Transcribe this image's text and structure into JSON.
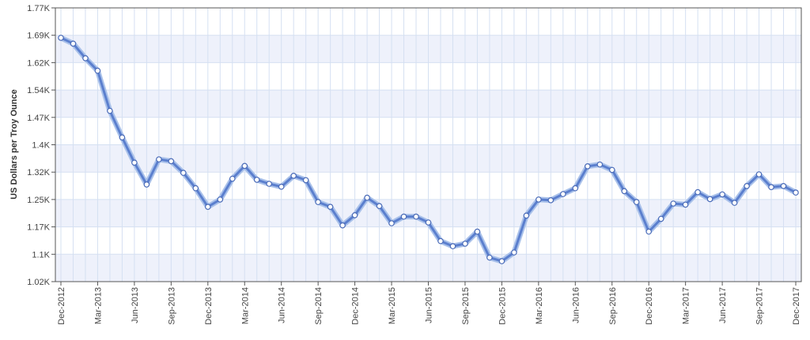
{
  "chart_data": {
    "type": "line",
    "title": "",
    "xlabel": "",
    "ylabel": "US Dollars per Troy Ounce",
    "ylim": [
      1020,
      1770
    ],
    "y_ticks": [
      "1.02K",
      "1.1K",
      "1.17K",
      "1.25K",
      "1.32K",
      "1.4K",
      "1.47K",
      "1.54K",
      "1.62K",
      "1.69K",
      "1.77K"
    ],
    "x_ticks": [
      {
        "index": 0,
        "label": "Dec-2012"
      },
      {
        "index": 3,
        "label": "Mar-2013"
      },
      {
        "index": 6,
        "label": "Jun-2013"
      },
      {
        "index": 9,
        "label": "Sep-2013"
      },
      {
        "index": 12,
        "label": "Dec-2013"
      },
      {
        "index": 15,
        "label": "Mar-2014"
      },
      {
        "index": 18,
        "label": "Jun-2014"
      },
      {
        "index": 21,
        "label": "Sep-2014"
      },
      {
        "index": 24,
        "label": "Dec-2014"
      },
      {
        "index": 27,
        "label": "Mar-2015"
      },
      {
        "index": 30,
        "label": "Jun-2015"
      },
      {
        "index": 33,
        "label": "Sep-2015"
      },
      {
        "index": 36,
        "label": "Dec-2015"
      },
      {
        "index": 39,
        "label": "Mar-2016"
      },
      {
        "index": 42,
        "label": "Jun-2016"
      },
      {
        "index": 45,
        "label": "Sep-2016"
      },
      {
        "index": 48,
        "label": "Dec-2016"
      },
      {
        "index": 51,
        "label": "Mar-2017"
      },
      {
        "index": 54,
        "label": "Jun-2017"
      },
      {
        "index": 57,
        "label": "Sep-2017"
      },
      {
        "index": 60,
        "label": "Dec-2017"
      }
    ],
    "series": [
      {
        "values": [
          1688,
          1672,
          1632,
          1598,
          1488,
          1415,
          1346,
          1286,
          1355,
          1350,
          1318,
          1276,
          1225,
          1245,
          1302,
          1337,
          1299,
          1288,
          1280,
          1310,
          1298,
          1238,
          1225,
          1174,
          1202,
          1250,
          1227,
          1180,
          1198,
          1198,
          1182,
          1131,
          1117,
          1124,
          1157,
          1086,
          1076,
          1100,
          1201,
          1245,
          1243,
          1260,
          1276,
          1336,
          1341,
          1326,
          1268,
          1238,
          1157,
          1192,
          1234,
          1231,
          1265,
          1246,
          1259,
          1236,
          1282,
          1314,
          1279,
          1282,
          1264
        ]
      }
    ],
    "grid": true,
    "legend": "none",
    "colors": {
      "line": "#5b7fce",
      "line_halo": "#a9c1ea",
      "marker_fill": "#ffffff",
      "band": "#eef1fb",
      "grid": "#d5e0f2",
      "axis": "#555555"
    }
  }
}
